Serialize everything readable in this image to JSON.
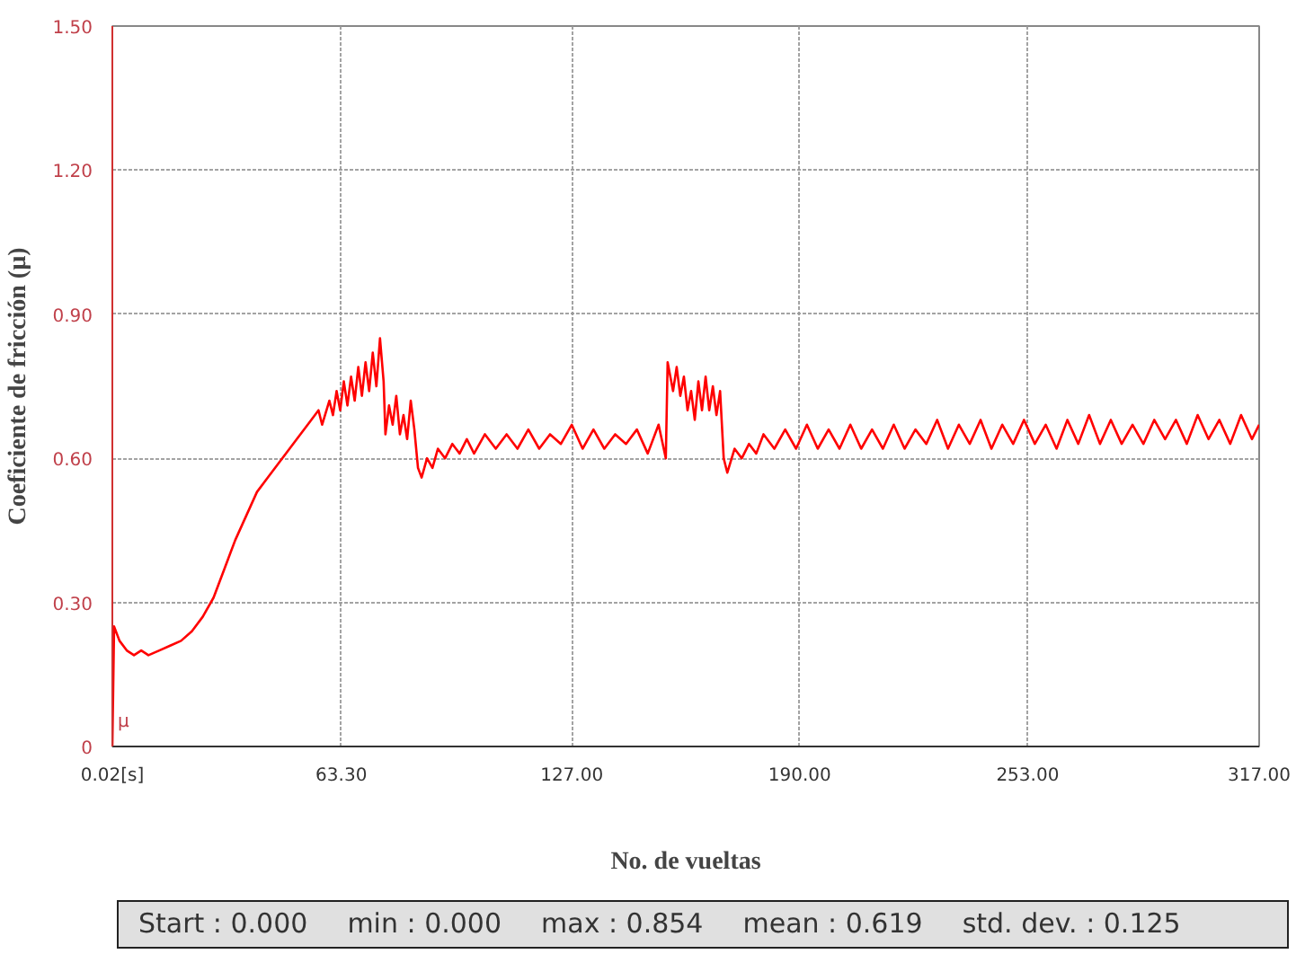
{
  "chart_data": {
    "type": "line",
    "xlabel": "No. de vueltas",
    "ylabel": "Coeficiente de fricción (µ)",
    "annotations": [
      "µ",
      "Start : 0.000",
      "min : 0.000",
      "max : 0.854",
      "mean : 0.619",
      "std. dev. : 0.125"
    ],
    "xlim": [
      0.02,
      317
    ],
    "ylim": [
      0,
      1.5
    ],
    "xticks": [
      {
        "value": 0.02,
        "label": "0.02[s]"
      },
      {
        "value": 63.3,
        "label": "63.30"
      },
      {
        "value": 127,
        "label": "127.00"
      },
      {
        "value": 190,
        "label": "190.00"
      },
      {
        "value": 253,
        "label": "253.00"
      },
      {
        "value": 317,
        "label": "317.00"
      }
    ],
    "yticks": [
      {
        "value": 0,
        "label": "0"
      },
      {
        "value": 0.3,
        "label": "0.30"
      },
      {
        "value": 0.6,
        "label": "0.60"
      },
      {
        "value": 0.9,
        "label": "0.90"
      },
      {
        "value": 1.2,
        "label": "1.20"
      },
      {
        "value": 1.5,
        "label": "1.50"
      }
    ],
    "grid": true,
    "marker": "none",
    "line_style": "solid",
    "series": [
      {
        "color": "#ff0000",
        "x": [
          0.02,
          0.5,
          2,
          4,
          6,
          8,
          10,
          13,
          16,
          19,
          22,
          25,
          28,
          31,
          34,
          37,
          40,
          43,
          46,
          49,
          52,
          55,
          57,
          58,
          60,
          61,
          62,
          63,
          64,
          65,
          66,
          67,
          68,
          69,
          70,
          71,
          72,
          73,
          74,
          75,
          75.5,
          76.5,
          77.5,
          78.5,
          79.5,
          80.5,
          81.5,
          82.5,
          83.5,
          84.5,
          85.5,
          87,
          88.5,
          90,
          92,
          94,
          96,
          98,
          100,
          103,
          106,
          109,
          112,
          115,
          118,
          121,
          124,
          127,
          130,
          133,
          136,
          139,
          142,
          145,
          148,
          151,
          153,
          153.5,
          155,
          156,
          157,
          158,
          159,
          160,
          161,
          162,
          163,
          164,
          165,
          166,
          167,
          168,
          169,
          170,
          172,
          174,
          176,
          178,
          180,
          183,
          186,
          189,
          192,
          195,
          198,
          201,
          204,
          207,
          210,
          213,
          216,
          219,
          222,
          225,
          228,
          231,
          234,
          237,
          240,
          243,
          246,
          249,
          252,
          255,
          258,
          261,
          264,
          267,
          270,
          273,
          276,
          279,
          282,
          285,
          288,
          291,
          294,
          297,
          300,
          303,
          306,
          309,
          312,
          315,
          317
        ],
        "values": [
          0,
          0.25,
          0.22,
          0.2,
          0.19,
          0.2,
          0.19,
          0.2,
          0.21,
          0.22,
          0.24,
          0.27,
          0.31,
          0.37,
          0.43,
          0.48,
          0.53,
          0.56,
          0.59,
          0.62,
          0.65,
          0.68,
          0.7,
          0.67,
          0.72,
          0.69,
          0.74,
          0.7,
          0.76,
          0.71,
          0.77,
          0.72,
          0.79,
          0.73,
          0.8,
          0.74,
          0.82,
          0.75,
          0.85,
          0.76,
          0.65,
          0.71,
          0.67,
          0.73,
          0.65,
          0.69,
          0.64,
          0.72,
          0.66,
          0.58,
          0.56,
          0.6,
          0.58,
          0.62,
          0.6,
          0.63,
          0.61,
          0.64,
          0.61,
          0.65,
          0.62,
          0.65,
          0.62,
          0.66,
          0.62,
          0.65,
          0.63,
          0.67,
          0.62,
          0.66,
          0.62,
          0.65,
          0.63,
          0.66,
          0.61,
          0.67,
          0.6,
          0.8,
          0.74,
          0.79,
          0.73,
          0.77,
          0.7,
          0.74,
          0.68,
          0.76,
          0.7,
          0.77,
          0.7,
          0.75,
          0.69,
          0.74,
          0.6,
          0.57,
          0.62,
          0.6,
          0.63,
          0.61,
          0.65,
          0.62,
          0.66,
          0.62,
          0.67,
          0.62,
          0.66,
          0.62,
          0.67,
          0.62,
          0.66,
          0.62,
          0.67,
          0.62,
          0.66,
          0.63,
          0.68,
          0.62,
          0.67,
          0.63,
          0.68,
          0.62,
          0.67,
          0.63,
          0.68,
          0.63,
          0.67,
          0.62,
          0.68,
          0.63,
          0.69,
          0.63,
          0.68,
          0.63,
          0.67,
          0.63,
          0.68,
          0.64,
          0.68,
          0.63,
          0.69,
          0.64,
          0.68,
          0.63,
          0.69,
          0.64,
          0.67
        ]
      }
    ]
  }
}
